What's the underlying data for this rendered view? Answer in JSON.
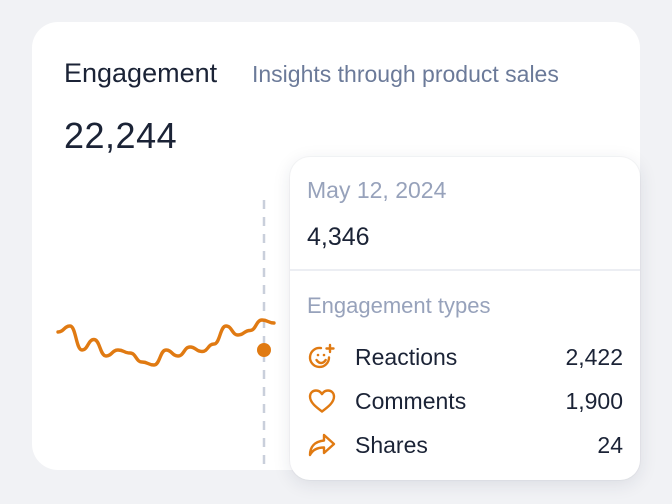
{
  "card": {
    "title": "Engagement",
    "subtitle": "Insights through product sales",
    "total": "22,244"
  },
  "colors": {
    "accent": "#e07a12",
    "text_primary": "#1b2336",
    "text_muted": "#97a2bb",
    "hover_line": "#c9cfdb"
  },
  "chart_data": {
    "type": "line",
    "title": "",
    "xlabel": "",
    "ylabel": "",
    "hover_index": 16,
    "series": [
      {
        "values": [
          52,
          56,
          40,
          47,
          36,
          40,
          38,
          32,
          30,
          40,
          36,
          42,
          39,
          44,
          56,
          50,
          53,
          60,
          58
        ]
      }
    ]
  },
  "tooltip": {
    "date": "May 12, 2024",
    "value": "4,346",
    "types_label": "Engagement types",
    "rows": [
      {
        "icon": "smiley-plus-icon",
        "label": "Reactions",
        "count": "2,422"
      },
      {
        "icon": "heart-icon",
        "label": "Comments",
        "count": "1,900"
      },
      {
        "icon": "share-arrow-icon",
        "label": "Shares",
        "count": "24"
      }
    ]
  }
}
